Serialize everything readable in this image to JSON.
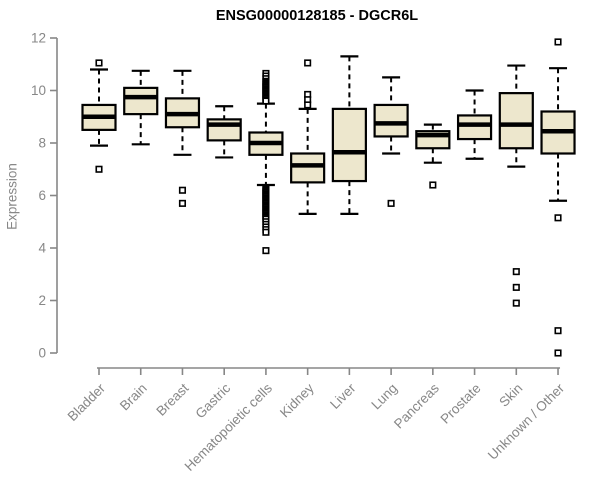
{
  "chart_data": {
    "type": "boxplot",
    "title": "ENSG00000128185 - DGCR6L",
    "ylabel": "Expression",
    "xlabel": "",
    "ylim": [
      0,
      12
    ],
    "yticks": [
      0,
      2,
      4,
      6,
      8,
      10,
      12
    ],
    "grid": false,
    "legend": "none",
    "colors": {
      "box_fill": "#ede7cd",
      "box_stroke": "#000000",
      "median": "#000000",
      "whisker": "#000000",
      "outlier_stroke": "#000000",
      "outlier_fill": "#ffffff",
      "axis": "#878787",
      "tick_label": "#878787",
      "title": "#000000",
      "background": "#ffffff"
    },
    "categories": [
      "Bladder",
      "Brain",
      "Breast",
      "Gastric",
      "Hematopoietic cells",
      "Kidney",
      "Liver",
      "Lung",
      "Pancreas",
      "Prostate",
      "Skin",
      "Unknown / Other"
    ],
    "series": [
      {
        "label": "Bladder",
        "low": 7.9,
        "q1": 8.5,
        "median": 9.0,
        "q3": 9.45,
        "high": 10.8,
        "outliers": [
          11.05,
          7.0
        ]
      },
      {
        "label": "Brain",
        "low": 7.95,
        "q1": 9.1,
        "median": 9.75,
        "q3": 10.1,
        "high": 10.75,
        "outliers": []
      },
      {
        "label": "Breast",
        "low": 7.55,
        "q1": 8.6,
        "median": 9.1,
        "q3": 9.7,
        "high": 10.75,
        "outliers": [
          6.2,
          5.7
        ]
      },
      {
        "label": "Gastric",
        "low": 7.45,
        "q1": 8.1,
        "median": 8.7,
        "q3": 8.9,
        "high": 9.4,
        "outliers": []
      },
      {
        "label": "Hematopoietic cells",
        "low": 6.4,
        "q1": 7.55,
        "median": 8.0,
        "q3": 8.4,
        "high": 9.5,
        "outliers": [
          10.65,
          10.55,
          10.45,
          10.35,
          10.3,
          10.25,
          10.2,
          10.15,
          10.1,
          10.05,
          10.0,
          9.95,
          9.9,
          9.85,
          9.8,
          9.75,
          9.7,
          9.65,
          9.6,
          6.3,
          6.25,
          6.2,
          6.15,
          6.1,
          6.05,
          6.0,
          5.95,
          5.9,
          5.85,
          5.8,
          5.75,
          5.7,
          5.65,
          5.6,
          5.55,
          5.5,
          5.45,
          5.4,
          5.35,
          5.3,
          5.25,
          5.2,
          5.15,
          5.1,
          5.0,
          4.9,
          4.8,
          4.7,
          4.6,
          3.9
        ]
      },
      {
        "label": "Kidney",
        "low": 5.3,
        "q1": 6.5,
        "median": 7.15,
        "q3": 7.6,
        "high": 9.3,
        "outliers": [
          11.05,
          9.85,
          9.65,
          9.45
        ]
      },
      {
        "label": "Liver",
        "low": 5.3,
        "q1": 6.55,
        "median": 7.65,
        "q3": 9.3,
        "high": 11.3,
        "outliers": []
      },
      {
        "label": "Lung",
        "low": 7.6,
        "q1": 8.25,
        "median": 8.75,
        "q3": 9.45,
        "high": 10.5,
        "outliers": [
          5.7
        ]
      },
      {
        "label": "Pancreas",
        "low": 7.25,
        "q1": 7.8,
        "median": 8.3,
        "q3": 8.45,
        "high": 8.7,
        "outliers": [
          6.4
        ]
      },
      {
        "label": "Prostate",
        "low": 7.4,
        "q1": 8.15,
        "median": 8.7,
        "q3": 9.05,
        "high": 10.0,
        "outliers": []
      },
      {
        "label": "Skin",
        "low": 7.1,
        "q1": 7.8,
        "median": 8.7,
        "q3": 9.9,
        "high": 10.95,
        "outliers": [
          3.1,
          2.5,
          1.9
        ]
      },
      {
        "label": "Unknown / Other",
        "low": 5.8,
        "q1": 7.6,
        "median": 8.45,
        "q3": 9.2,
        "high": 10.85,
        "outliers": [
          11.85,
          5.15,
          0.85,
          0.0
        ]
      }
    ]
  }
}
